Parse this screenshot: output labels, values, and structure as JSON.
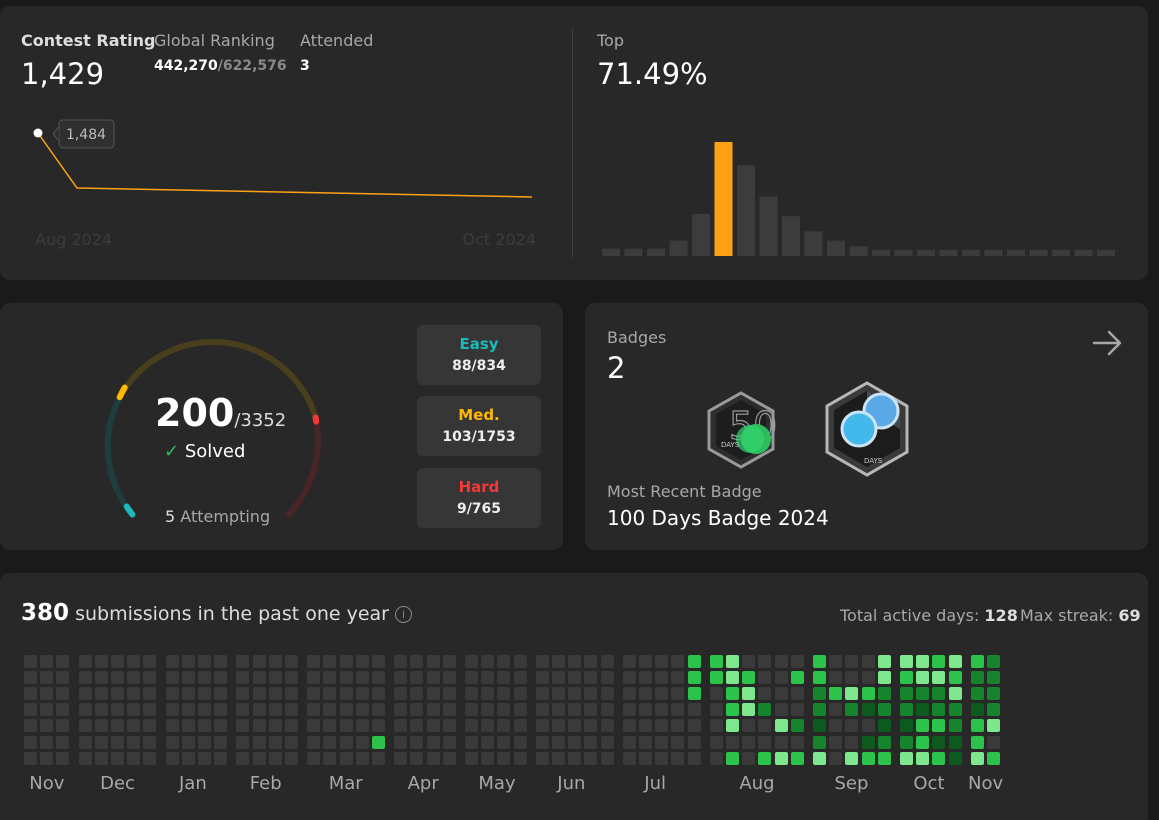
{
  "contest": {
    "rating_label": "Contest Rating",
    "rating_value": "1,429",
    "global_ranking_label": "Global Ranking",
    "global_rank": "442,270",
    "global_total": "/622,576",
    "attended_label": "Attended",
    "attended_value": "3",
    "tooltip_value": "1,484",
    "x_start_label": "Aug 2024",
    "x_end_label": "Oct 2024",
    "top_label": "Top",
    "top_value": "71.49%",
    "accent_color": "#ffa116"
  },
  "distribution": {
    "values": [
      8,
      8,
      8,
      15,
      38,
      100,
      80,
      53,
      36,
      23,
      15,
      10,
      7,
      7,
      7,
      7,
      7,
      7,
      7,
      7,
      7,
      7,
      7
    ],
    "highlight_index": 5
  },
  "solved": {
    "solved_count": "200",
    "total_count": "/3352",
    "solved_label": "Solved",
    "attempting_count": "5",
    "attempting_label": "Attempting",
    "easy_label": "Easy",
    "easy_value": "88/834",
    "medium_label": "Med.",
    "medium_value": "103/1753",
    "hard_label": "Hard",
    "hard_value": "9/765",
    "colors": {
      "easy": "#1cbaba",
      "medium": "#ffb700",
      "hard": "#f63737"
    }
  },
  "badges": {
    "title": "Badges",
    "count": "2",
    "badge_1_text": "50",
    "badge_1_sub": "DAYS",
    "badge_2_sub": "DAYS",
    "recent_label": "Most Recent Badge",
    "recent_name": "100 Days Badge 2024"
  },
  "submissions": {
    "count": "380",
    "label": "submissions in the past one year",
    "active_days_label": "Total active days:",
    "active_days_value": "128",
    "max_streak_label": "Max streak:",
    "max_streak_value": "69",
    "months": [
      "Nov",
      "Dec",
      "Jan",
      "Feb",
      "Mar",
      "Apr",
      "May",
      "Jun",
      "Jul",
      "Aug",
      "Sep",
      "Oct",
      "Nov"
    ]
  }
}
